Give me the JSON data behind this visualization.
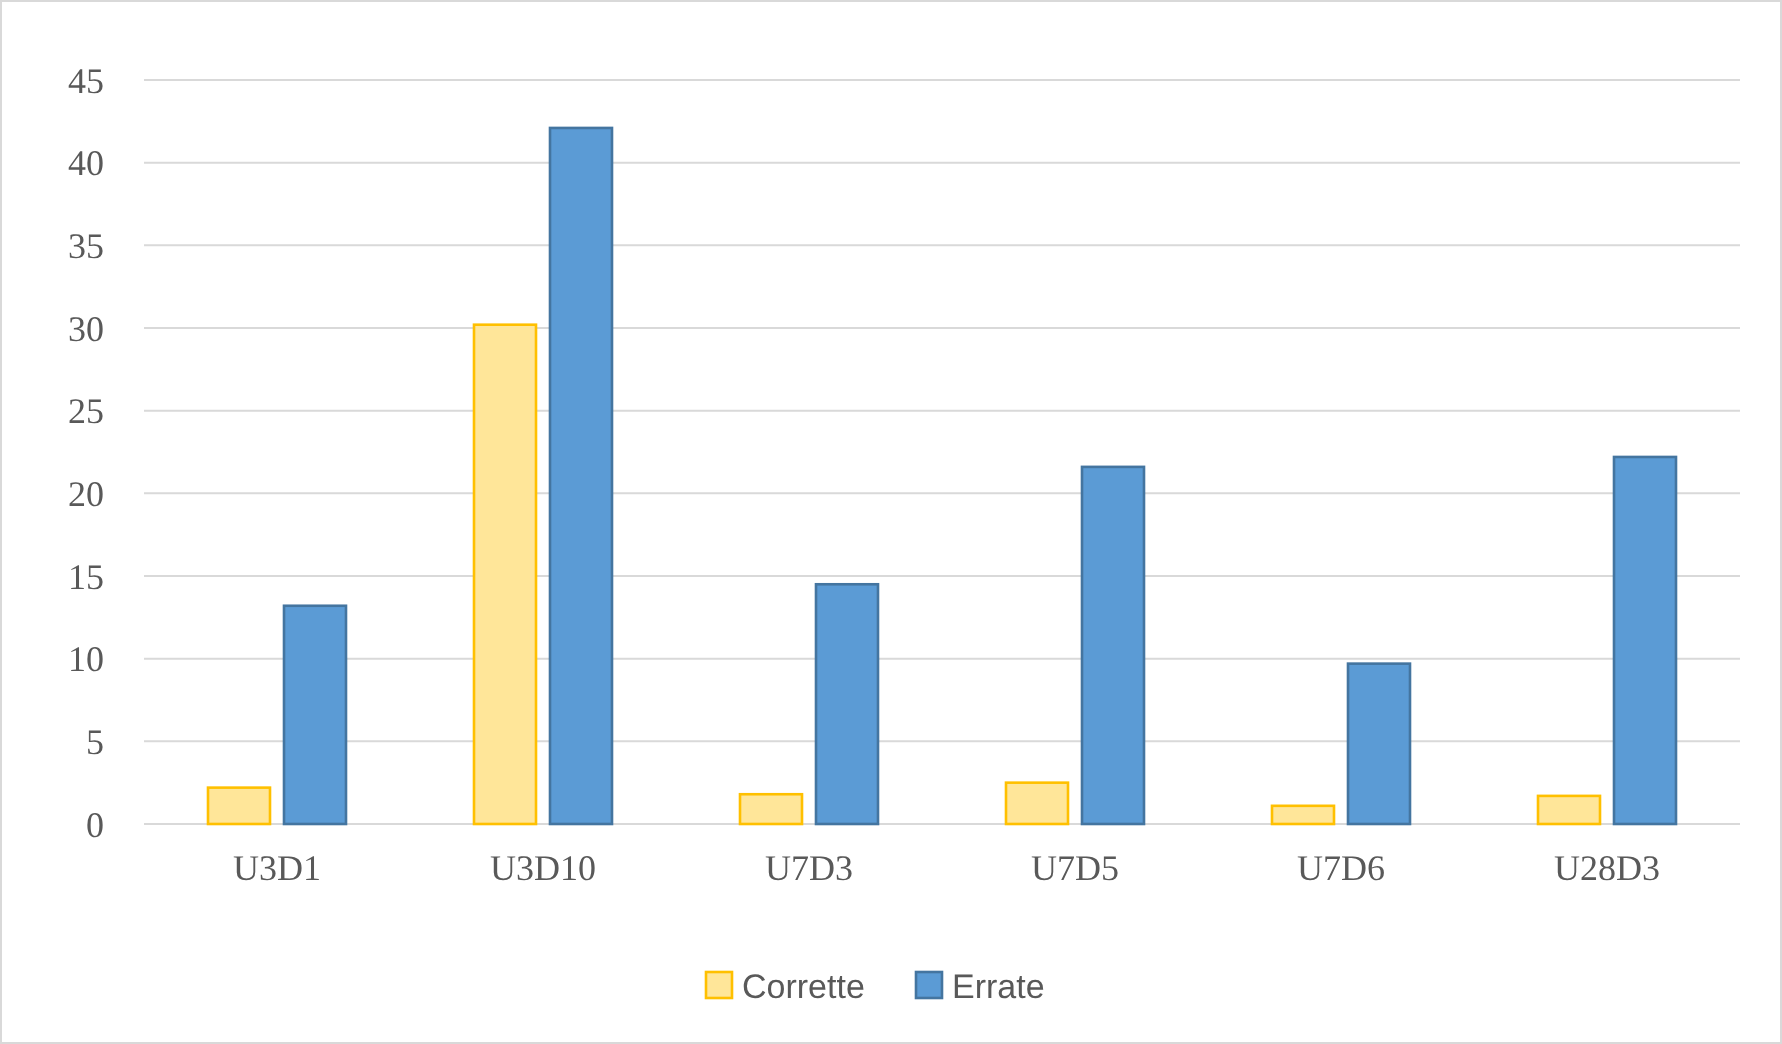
{
  "chart_data": {
    "type": "bar",
    "categories": [
      "U3D1",
      "U3D10",
      "U7D3",
      "U7D5",
      "U7D6",
      "U28D3"
    ],
    "series": [
      {
        "name": "Corrette",
        "color": "#ffe699",
        "values": [
          2.2,
          30.2,
          1.8,
          2.5,
          1.1,
          1.7
        ]
      },
      {
        "name": "Errate",
        "color": "#5b9bd5",
        "values": [
          13.2,
          42.1,
          14.5,
          21.6,
          9.7,
          22.2
        ]
      }
    ],
    "ylim": [
      0,
      45
    ],
    "yticks": [
      0,
      5,
      10,
      15,
      20,
      25,
      30,
      35,
      40,
      45
    ],
    "grid": "y",
    "legend": "bottom"
  }
}
